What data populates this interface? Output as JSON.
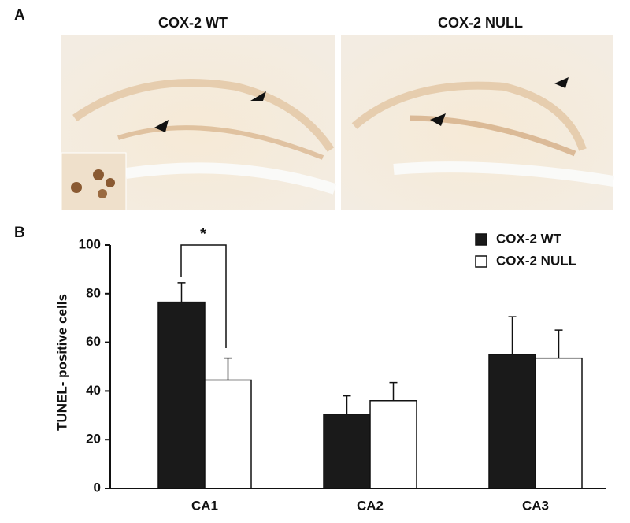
{
  "panel_labels": [
    "A",
    "B"
  ],
  "panel_a": {
    "titles": [
      "COX-2 WT",
      "COX-2 NULL"
    ]
  },
  "chart_data": {
    "type": "bar",
    "y_label": "TUNEL- positive cells",
    "categories": [
      "CA1",
      "CA2",
      "CA3"
    ],
    "series": [
      {
        "name": "COX-2 WT",
        "color": "#1a1a1a",
        "values": [
          76.5,
          30.5,
          55
        ],
        "errors": [
          8,
          7.5,
          15.5
        ]
      },
      {
        "name": "COX-2 NULL",
        "color": "#ffffff",
        "values": [
          44.5,
          36,
          53.5
        ],
        "errors": [
          9,
          7.5,
          11.5
        ]
      }
    ],
    "ylim": [
      0,
      100
    ],
    "yticks": [
      0,
      20,
      40,
      60,
      80,
      100
    ],
    "annotation": "*"
  }
}
